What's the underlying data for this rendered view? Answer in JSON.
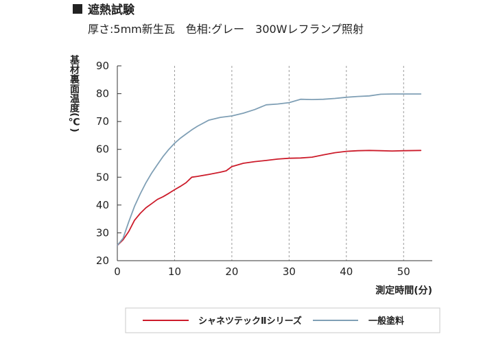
{
  "header": {
    "marker": "■",
    "title": "遮熱試験",
    "subtitle": "厚さ:5mm新生瓦　色相:グレー　300Wレフランプ照射"
  },
  "chart_data": {
    "type": "line",
    "xlabel": "測定時間(分)",
    "ylabel": "基材裏面温度(℃)",
    "xlim": [
      0,
      55
    ],
    "ylim": [
      20,
      90
    ],
    "xticks": [
      0,
      10,
      20,
      30,
      40,
      50
    ],
    "yticks": [
      20,
      30,
      40,
      50,
      60,
      70,
      80,
      90
    ],
    "grid": "vertical-dashed",
    "legend_position": "bottom",
    "series": [
      {
        "name": "シャネツテックⅡシリーズ",
        "color": "#cc1b2a",
        "x": [
          0,
          1,
          2,
          3,
          4,
          5,
          6,
          7,
          8,
          9,
          10,
          11,
          12,
          13,
          14,
          16,
          18,
          19,
          20,
          22,
          24,
          26,
          28,
          30,
          32,
          34,
          36,
          38,
          40,
          42,
          44,
          46,
          48,
          50,
          53
        ],
        "values": [
          25.5,
          27.5,
          30.5,
          34.5,
          37.0,
          39.0,
          40.5,
          42.0,
          43.0,
          44.2,
          45.5,
          46.7,
          48.0,
          50.0,
          50.3,
          51.0,
          51.8,
          52.3,
          53.8,
          55.0,
          55.6,
          56.0,
          56.5,
          56.8,
          56.9,
          57.2,
          58.0,
          58.8,
          59.3,
          59.5,
          59.6,
          59.5,
          59.4,
          59.5,
          59.6
        ]
      },
      {
        "name": "一般塗料",
        "color": "#7f9fb5",
        "x": [
          0,
          1,
          2,
          3,
          4,
          5,
          6,
          7,
          8,
          9,
          10,
          11,
          12,
          13,
          14,
          16,
          18,
          20,
          22,
          24,
          26,
          28,
          30,
          32,
          34,
          36,
          38,
          40,
          42,
          44,
          46,
          48,
          50,
          53
        ],
        "values": [
          25.5,
          28.0,
          34.0,
          39.5,
          44.0,
          48.0,
          51.5,
          54.5,
          57.5,
          60.0,
          62.2,
          64.0,
          65.5,
          67.0,
          68.3,
          70.5,
          71.5,
          72.0,
          73.0,
          74.3,
          76.0,
          76.3,
          76.8,
          78.0,
          77.9,
          78.0,
          78.3,
          78.7,
          79.0,
          79.2,
          79.8,
          79.9,
          79.9,
          79.9
        ]
      }
    ]
  }
}
